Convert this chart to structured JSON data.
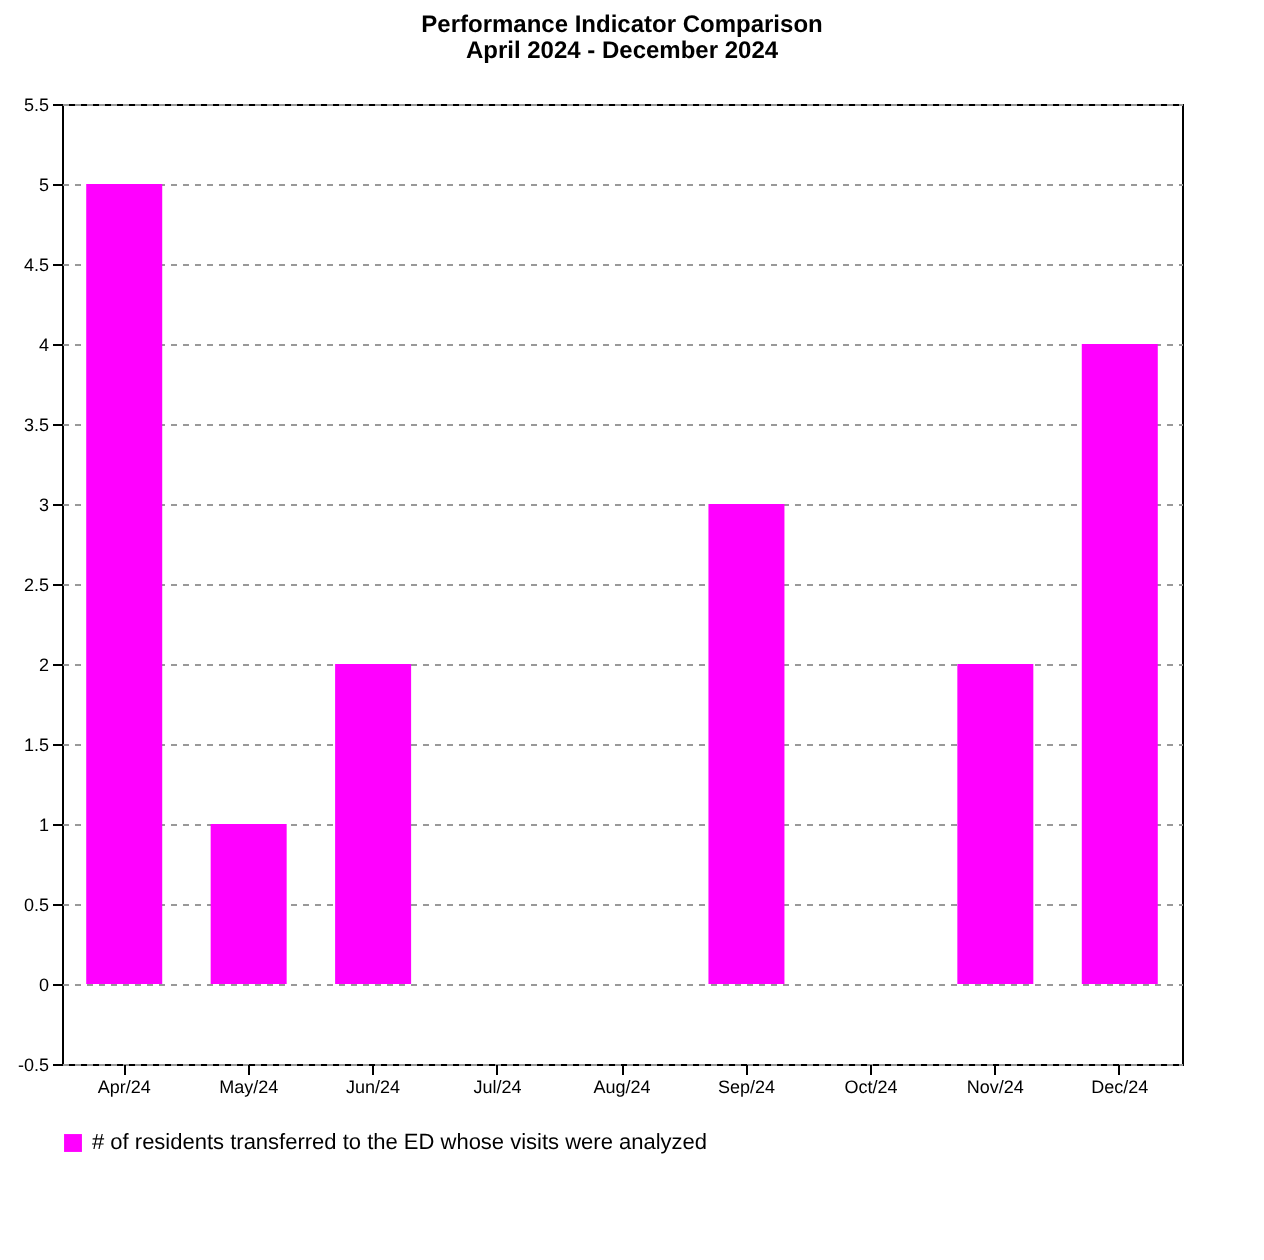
{
  "chart_data": {
    "type": "bar",
    "title": "Performance Indicator Comparison",
    "subtitle": "April 2024 - December 2024",
    "categories": [
      "Apr/24",
      "May/24",
      "Jun/24",
      "Jul/24",
      "Aug/24",
      "Sep/24",
      "Oct/24",
      "Nov/24",
      "Dec/24"
    ],
    "series": [
      {
        "name": "# of residents transferred to the ED whose visits were analyzed",
        "color": "#ff00ff",
        "values": [
          5,
          1,
          2,
          0,
          0,
          3,
          0,
          2,
          4
        ]
      }
    ],
    "ylim": [
      -0.5,
      5.5
    ],
    "yticks": [
      -0.5,
      0,
      0.5,
      1,
      1.5,
      2,
      2.5,
      3,
      3.5,
      4,
      4.5,
      5,
      5.5
    ],
    "grid": "y",
    "legend": "bottom"
  }
}
